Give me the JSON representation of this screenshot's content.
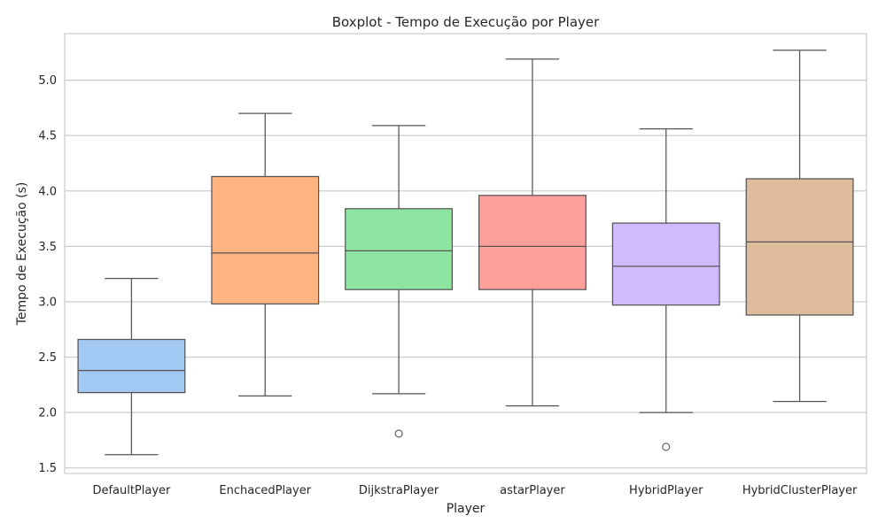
{
  "chart_data": {
    "type": "box",
    "title": "Boxplot - Tempo de Execução por Player",
    "xlabel": "Player",
    "ylabel": "Tempo de Execução (s)",
    "ylim": [
      1.45,
      5.42
    ],
    "yticks": [
      "1.5",
      "2.0",
      "2.5",
      "3.0",
      "3.5",
      "4.0",
      "4.5",
      "5.0"
    ],
    "grid": "horizontal",
    "categories": [
      "DefaultPlayer",
      "EnchacedPlayer",
      "DijkstraPlayer",
      "astarPlayer",
      "HybridPlayer",
      "HybridClusterPlayer"
    ],
    "boxes": [
      {
        "whisker_low": 1.62,
        "q1": 2.18,
        "median": 2.38,
        "q3": 2.66,
        "whisker_high": 3.21,
        "outliers": [],
        "color": "#a1c9f4"
      },
      {
        "whisker_low": 2.15,
        "q1": 2.98,
        "median": 3.44,
        "q3": 4.13,
        "whisker_high": 4.7,
        "outliers": [],
        "color": "#ffb482"
      },
      {
        "whisker_low": 2.17,
        "q1": 3.11,
        "median": 3.46,
        "q3": 3.84,
        "whisker_high": 4.59,
        "outliers": [
          1.81
        ],
        "color": "#8de5a1"
      },
      {
        "whisker_low": 2.06,
        "q1": 3.11,
        "median": 3.5,
        "q3": 3.96,
        "whisker_high": 5.19,
        "outliers": [],
        "color": "#ff9f9b"
      },
      {
        "whisker_low": 2.0,
        "q1": 2.97,
        "median": 3.32,
        "q3": 3.71,
        "whisker_high": 4.56,
        "outliers": [
          1.69
        ],
        "color": "#d0bbff"
      },
      {
        "whisker_low": 2.1,
        "q1": 2.88,
        "median": 3.54,
        "q3": 4.11,
        "whisker_high": 5.27,
        "outliers": [],
        "color": "#debb9b"
      }
    ]
  }
}
